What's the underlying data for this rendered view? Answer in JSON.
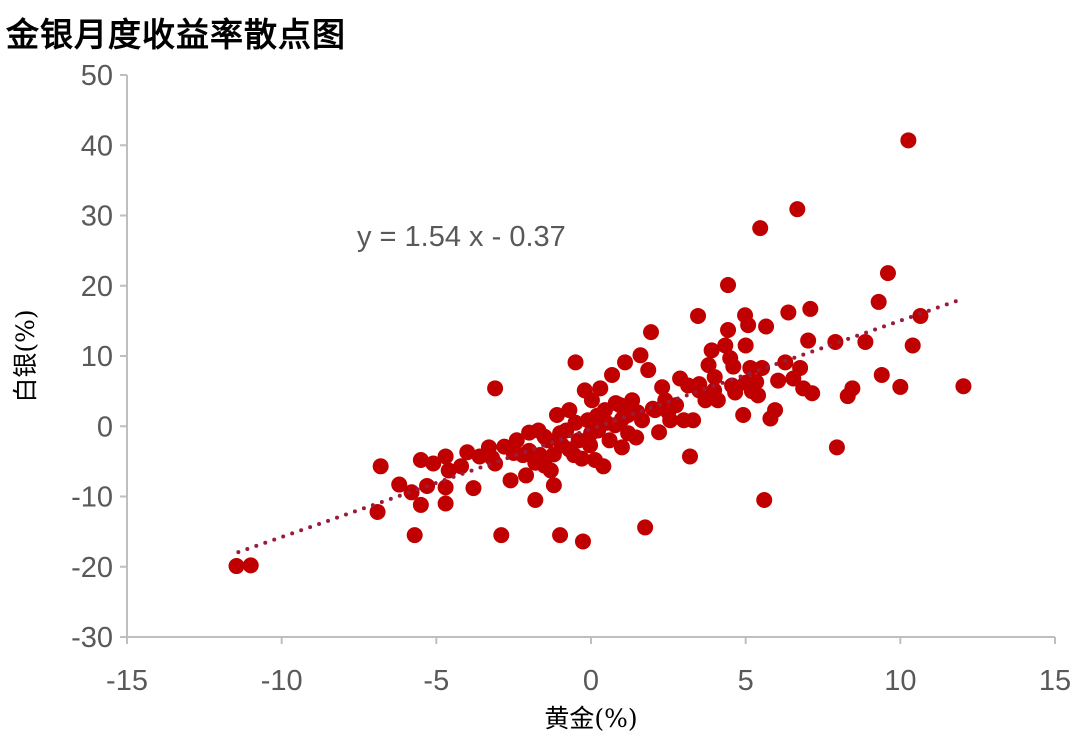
{
  "chart_data": {
    "type": "scatter",
    "title": "金银月度收益率散点图",
    "xlabel": "黄金(%)",
    "ylabel": "白银(%)",
    "xlim": [
      -15,
      15
    ],
    "ylim": [
      -30,
      50
    ],
    "xticks": [
      -15,
      -10,
      -5,
      0,
      5,
      10,
      15
    ],
    "yticks": [
      -30,
      -20,
      -10,
      0,
      10,
      20,
      30,
      40,
      50
    ],
    "grid": false,
    "marker_color": "#c00000",
    "trendline": {
      "label": "y = 1.54 x - 0.37",
      "slope": 1.54,
      "intercept": -0.37,
      "x_range": [
        -11.4,
        12.0
      ],
      "color": "#9b1b3b",
      "style": "dotted"
    },
    "points": [
      [
        -11.46,
        -19.9
      ],
      [
        -11.0,
        -19.8
      ],
      [
        -6.8,
        -5.7
      ],
      [
        -6.9,
        -12.2
      ],
      [
        -6.2,
        -8.3
      ],
      [
        -5.8,
        -9.4
      ],
      [
        -5.7,
        -15.5
      ],
      [
        -5.5,
        -4.8
      ],
      [
        -5.5,
        -11.2
      ],
      [
        -5.3,
        -8.5
      ],
      [
        -5.1,
        -5.3
      ],
      [
        -4.7,
        -4.3
      ],
      [
        -4.7,
        -8.7
      ],
      [
        -4.7,
        -11.0
      ],
      [
        -4.6,
        -6.3
      ],
      [
        -4.2,
        -5.7
      ],
      [
        -4.0,
        -3.7
      ],
      [
        -3.8,
        -8.8
      ],
      [
        -3.6,
        -4.3
      ],
      [
        -3.3,
        -3.0
      ],
      [
        -3.1,
        -5.3
      ],
      [
        -3.1,
        5.4
      ],
      [
        -2.9,
        -15.5
      ],
      [
        -2.8,
        -2.9
      ],
      [
        -2.6,
        -7.7
      ],
      [
        -2.4,
        -2.0
      ],
      [
        -2.2,
        -4.1
      ],
      [
        -2.1,
        -7.0
      ],
      [
        -2.0,
        -0.9
      ],
      [
        -1.8,
        -10.5
      ],
      [
        -1.7,
        -0.6
      ],
      [
        -1.65,
        -4.1
      ],
      [
        -1.5,
        -5.6
      ],
      [
        -1.4,
        -2.0
      ],
      [
        -1.3,
        -6.3
      ],
      [
        -1.2,
        -8.4
      ],
      [
        -1.1,
        1.6
      ],
      [
        -1.0,
        -15.5
      ],
      [
        -0.94,
        -2.7
      ],
      [
        -0.8,
        -0.6
      ],
      [
        -0.7,
        2.3
      ],
      [
        -0.55,
        -4.1
      ],
      [
        -0.5,
        9.1
      ],
      [
        -0.4,
        -2.0
      ],
      [
        -0.3,
        -4.6
      ],
      [
        -0.26,
        -16.4
      ],
      [
        -0.2,
        5.1
      ],
      [
        -0.1,
        0.85
      ],
      [
        -0.03,
        -2.7
      ],
      [
        0.03,
        3.7
      ],
      [
        0.13,
        -4.8
      ],
      [
        0.23,
        -0.6
      ],
      [
        0.3,
        5.4
      ],
      [
        0.4,
        -5.7
      ],
      [
        0.45,
        2.3
      ],
      [
        0.6,
        -2.0
      ],
      [
        0.68,
        7.3
      ],
      [
        0.78,
        0.14
      ],
      [
        0.94,
        3.0
      ],
      [
        1.0,
        -3.0
      ],
      [
        1.1,
        9.1
      ],
      [
        1.2,
        1.6
      ],
      [
        1.33,
        3.7
      ],
      [
        1.46,
        -1.6
      ],
      [
        1.6,
        10.1
      ],
      [
        1.65,
        0.85
      ],
      [
        1.75,
        -14.4
      ],
      [
        1.85,
        8.0
      ],
      [
        1.94,
        13.4
      ],
      [
        2.07,
        2.3
      ],
      [
        2.2,
        -0.85
      ],
      [
        2.3,
        5.55
      ],
      [
        2.4,
        3.7
      ],
      [
        2.56,
        0.85
      ],
      [
        2.75,
        3.0
      ],
      [
        2.88,
        6.8
      ],
      [
        3.0,
        0.85
      ],
      [
        3.14,
        5.8
      ],
      [
        3.2,
        -4.3
      ],
      [
        3.3,
        0.85
      ],
      [
        3.46,
        15.7
      ],
      [
        3.5,
        5.1
      ],
      [
        3.7,
        3.7
      ],
      [
        3.8,
        8.7
      ],
      [
        3.9,
        10.8
      ],
      [
        3.98,
        5.1
      ],
      [
        4.1,
        3.7
      ],
      [
        4.34,
        11.5
      ],
      [
        4.43,
        20.1
      ],
      [
        4.43,
        13.7
      ],
      [
        4.5,
        9.7
      ],
      [
        4.56,
        5.8
      ],
      [
        4.66,
        4.8
      ],
      [
        4.92,
        1.6
      ],
      [
        4.98,
        15.8
      ],
      [
        5.0,
        11.5
      ],
      [
        5.08,
        14.4
      ],
      [
        5.15,
        8.3
      ],
      [
        5.34,
        6.3
      ],
      [
        5.4,
        4.4
      ],
      [
        5.47,
        28.2
      ],
      [
        5.53,
        8.3
      ],
      [
        5.6,
        -10.5
      ],
      [
        5.66,
        14.2
      ],
      [
        5.8,
        1.1
      ],
      [
        5.95,
        2.3
      ],
      [
        6.05,
        6.5
      ],
      [
        6.28,
        9.1
      ],
      [
        6.38,
        16.2
      ],
      [
        6.54,
        6.8
      ],
      [
        6.67,
        30.9
      ],
      [
        6.76,
        8.3
      ],
      [
        6.86,
        5.4
      ],
      [
        7.02,
        12.2
      ],
      [
        7.09,
        16.7
      ],
      [
        7.15,
        4.7
      ],
      [
        7.9,
        12.0
      ],
      [
        7.95,
        -3.0
      ],
      [
        8.3,
        4.3
      ],
      [
        8.45,
        5.4
      ],
      [
        8.87,
        12.0
      ],
      [
        9.3,
        17.7
      ],
      [
        9.4,
        7.3
      ],
      [
        9.6,
        21.8
      ],
      [
        10.0,
        5.6
      ],
      [
        10.26,
        40.7
      ],
      [
        10.4,
        11.5
      ],
      [
        10.65,
        15.7
      ],
      [
        12.04,
        5.7
      ],
      [
        -2.0,
        -3.5
      ],
      [
        -1.5,
        -1.5
      ],
      [
        -1.0,
        -1.0
      ],
      [
        0.0,
        -1.0
      ],
      [
        0.5,
        0.5
      ],
      [
        1.0,
        1.0
      ],
      [
        1.5,
        2.0
      ],
      [
        2.0,
        2.5
      ],
      [
        -0.5,
        0.5
      ],
      [
        0.2,
        1.5
      ],
      [
        -2.5,
        -3.8
      ],
      [
        -3.2,
        -4.5
      ],
      [
        3.5,
        6.0
      ],
      [
        4.0,
        7.0
      ],
      [
        2.5,
        2.0
      ],
      [
        3.8,
        4.5
      ],
      [
        1.2,
        -1.0
      ],
      [
        0.8,
        3.3
      ],
      [
        -0.7,
        -3.3
      ],
      [
        -1.8,
        -5.2
      ],
      [
        -1.2,
        -4.0
      ],
      [
        4.6,
        8.5
      ],
      [
        5.0,
        6.2
      ],
      [
        5.2,
        5.0
      ]
    ]
  }
}
